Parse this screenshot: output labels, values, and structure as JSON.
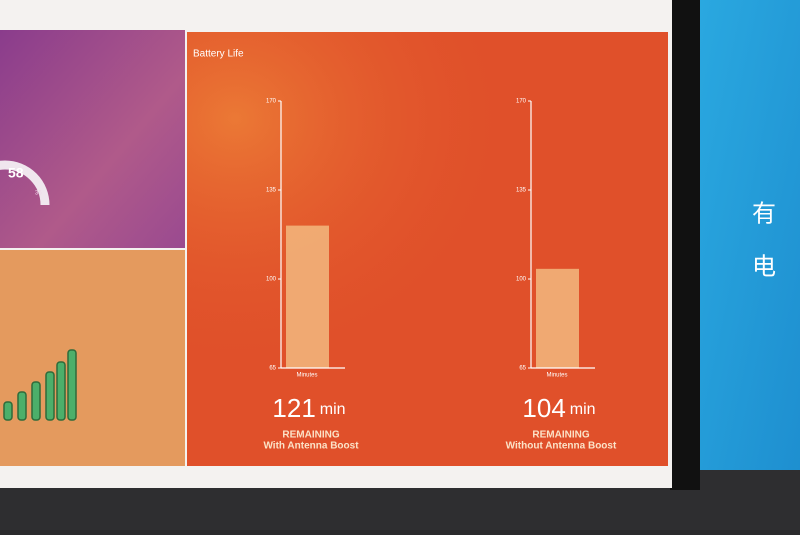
{
  "panel_title": "Battery Life",
  "chart_data": [
    {
      "type": "bar",
      "xlabel": "Minutes",
      "values": [
        121
      ],
      "value_labels": [
        "121"
      ],
      "unit": "min",
      "caption": "REMAINING",
      "subcaption": "With Antenna Boost",
      "color": "#f2b27a",
      "ylim": [
        65,
        170
      ],
      "yticks": [
        65,
        100,
        135,
        170
      ]
    },
    {
      "type": "bar",
      "xlabel": "Minutes",
      "values": [
        104
      ],
      "value_labels": [
        "104"
      ],
      "unit": "min",
      "caption": "REMAINING",
      "subcaption": "Without Antenna Boost",
      "color": "#f2b27a",
      "ylim": [
        65,
        170
      ],
      "yticks": [
        65,
        100,
        135,
        170
      ]
    }
  ],
  "gauge": {
    "value": "58",
    "max_label": "35"
  },
  "side_text": [
    "有",
    "电"
  ]
}
